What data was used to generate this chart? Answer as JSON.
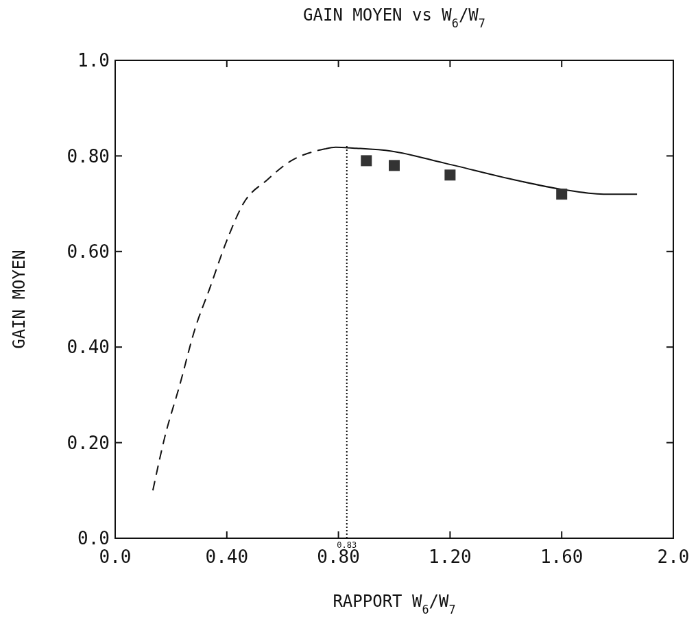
{
  "chart_data": {
    "type": "line",
    "title": "GAIN MOYEN vs W$_{6}$/W$_{7}$",
    "xlabel": "RAPPORT W$_{6}$/W$_{7}$",
    "ylabel": "GAIN MOYEN",
    "xlim": [
      0,
      2
    ],
    "ylim": [
      0,
      1
    ],
    "xticks": [
      {
        "value": 0,
        "label": "0.0"
      },
      {
        "value": 0.4,
        "label": "0.40"
      },
      {
        "value": 0.8,
        "label": "0.80"
      },
      {
        "value": 1.2,
        "label": "1.20"
      },
      {
        "value": 1.6,
        "label": "1.60"
      },
      {
        "value": 2,
        "label": "2.0"
      }
    ],
    "yticks": [
      {
        "value": 0,
        "label": "0.0"
      },
      {
        "value": 0.2,
        "label": "0.20"
      },
      {
        "value": 0.4,
        "label": "0.40"
      },
      {
        "value": 0.6,
        "label": "0.60"
      },
      {
        "value": 0.8,
        "label": "0.80"
      },
      {
        "value": 1,
        "label": "1.0"
      }
    ],
    "grid": false,
    "series": [
      {
        "type": "line",
        "color": "#111111",
        "line_style": "dashed",
        "marker": "none",
        "x": [
          0.135,
          0.177,
          0.231,
          0.287,
          0.337,
          0.398,
          0.459,
          0.545,
          0.631,
          0.717,
          0.754
        ],
        "values": [
          0.1,
          0.21,
          0.32,
          0.44,
          0.52,
          0.62,
          0.7,
          0.75,
          0.79,
          0.81,
          0.815
        ]
      },
      {
        "type": "line",
        "color": "#111111",
        "line_style": "solid",
        "marker": "none",
        "x": [
          0.754,
          0.79,
          0.865,
          0.99,
          1.18,
          1.43,
          1.6,
          1.75,
          1.87
        ],
        "values": [
          0.815,
          0.818,
          0.816,
          0.81,
          0.785,
          0.75,
          0.73,
          0.72,
          0.72
        ]
      },
      {
        "type": "scatter",
        "color": "#333333",
        "marker": "square",
        "x": [
          0.9,
          1.0,
          1.2,
          1.6
        ],
        "values": [
          0.79,
          0.78,
          0.76,
          0.72
        ]
      }
    ],
    "ref_lines": [
      {
        "axis": "x",
        "value": 0.83,
        "label": "0.83",
        "line_style": "dotted",
        "color": "#111111"
      }
    ]
  }
}
